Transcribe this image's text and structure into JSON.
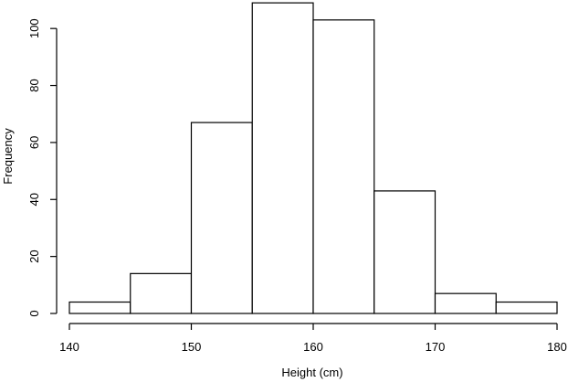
{
  "chart_data": {
    "type": "bar",
    "histogram": true,
    "bin_edges": [
      140,
      145,
      150,
      155,
      160,
      165,
      170,
      175,
      180
    ],
    "values": [
      4,
      14,
      67,
      109,
      103,
      43,
      7,
      4
    ],
    "xlabel": "Height (cm)",
    "ylabel": "Frequency",
    "xlim": [
      140,
      180
    ],
    "ylim": [
      0,
      110
    ],
    "x_ticks": [
      140,
      150,
      160,
      170,
      180
    ],
    "y_ticks": [
      0,
      20,
      40,
      60,
      80,
      100
    ],
    "grid": false,
    "legend": "none"
  },
  "colors": {
    "bar_fill": "#ffffff",
    "stroke": "#000000"
  }
}
